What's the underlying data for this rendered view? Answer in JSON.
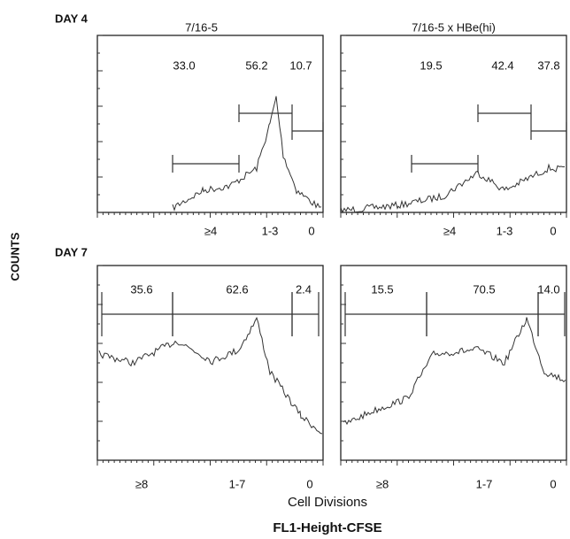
{
  "figure": {
    "y_axis_label": "COUNTS",
    "x_axis_label": "Cell Divisions",
    "x_axis_sublabel": "FL1-Height-CFSE",
    "columns": [
      "7/16-5",
      "7/16-5 x HBe(hi)"
    ],
    "rows": [
      {
        "label": "DAY 4",
        "panels": [
          {
            "gates": [
              {
                "percent": "33.0",
                "division": "≥4"
              },
              {
                "percent": "56.2",
                "division": "1-3"
              },
              {
                "percent": "10.7",
                "division": "0"
              }
            ]
          },
          {
            "gates": [
              {
                "percent": "19.5",
                "division": "≥4"
              },
              {
                "percent": "42.4",
                "division": "1-3"
              },
              {
                "percent": "37.8",
                "division": "0"
              }
            ]
          }
        ]
      },
      {
        "label": "DAY 7",
        "panels": [
          {
            "gates": [
              {
                "percent": "35.6",
                "division": "≥8"
              },
              {
                "percent": "62.6",
                "division": "1-7"
              },
              {
                "percent": "2.4",
                "division": "0"
              }
            ]
          },
          {
            "gates": [
              {
                "percent": "15.5",
                "division": "≥8"
              },
              {
                "percent": "70.5",
                "division": "1-7"
              },
              {
                "percent": "14.0",
                "division": "0"
              }
            ]
          }
        ]
      }
    ]
  }
}
